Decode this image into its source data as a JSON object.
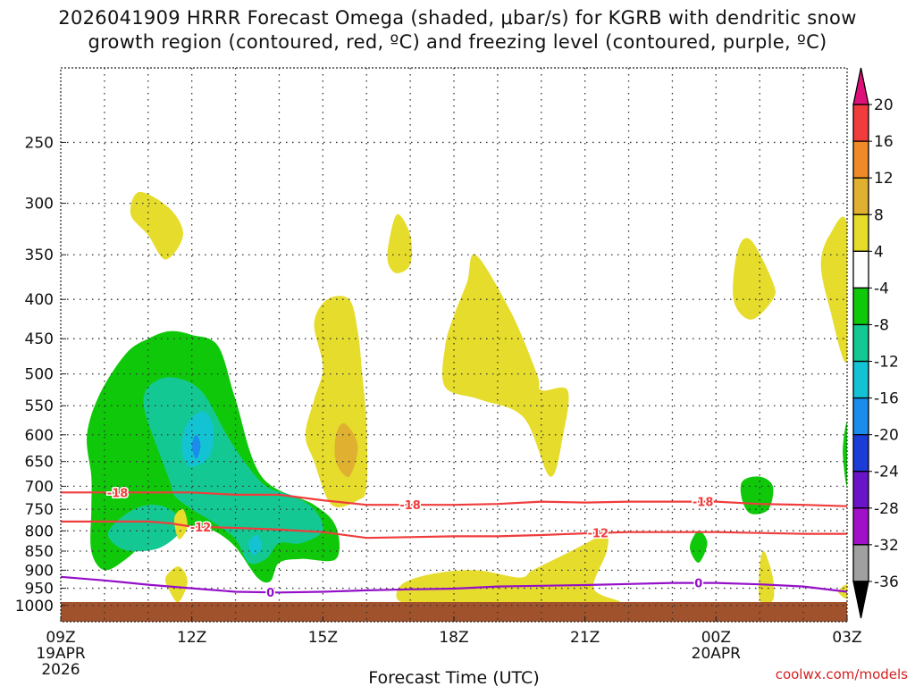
{
  "chart_data": {
    "type": "time-height cross-section (filled contour)",
    "title_line1": "2026041909 HRRR Forecast Omega (shaded, μbar/s) for KGRB with dendritic snow",
    "title_line2": "growth region (contoured, red, ºC) and freezing level (contoured, purple, ºC)",
    "xlabel": "Forecast Time (UTC)",
    "ylabel": "",
    "credit": "coolwx.com/models",
    "x_start_hours_since_09Z_19APR": 0,
    "x_end_hours_since_09Z_19APR": 18,
    "x_ticks": [
      {
        "hour": 0,
        "label": "09Z",
        "sub1": "19APR",
        "sub2": "2026"
      },
      {
        "hour": 3,
        "label": "12Z",
        "sub1": "",
        "sub2": ""
      },
      {
        "hour": 6,
        "label": "15Z",
        "sub1": "",
        "sub2": ""
      },
      {
        "hour": 9,
        "label": "18Z",
        "sub1": "",
        "sub2": ""
      },
      {
        "hour": 12,
        "label": "21Z",
        "sub1": "",
        "sub2": ""
      },
      {
        "hour": 15,
        "label": "00Z",
        "sub1": "20APR",
        "sub2": ""
      },
      {
        "hour": 18,
        "label": "03Z",
        "sub1": "",
        "sub2": ""
      }
    ],
    "pressure_axis_hPa": {
      "top": 200,
      "bottom": 1050,
      "scale": "log"
    },
    "y_ticks": [
      "250",
      "300",
      "350",
      "400",
      "450",
      "500",
      "550",
      "600",
      "650",
      "700",
      "750",
      "800",
      "850",
      "900",
      "950",
      "1000"
    ],
    "ground_hPa": 990,
    "colorbar": {
      "label_values": [
        "20",
        "16",
        "12",
        "8",
        "4",
        "-4",
        "-8",
        "-12",
        "-16",
        "-20",
        "-24",
        "-28",
        "-32",
        "-36"
      ],
      "colors": [
        "#e0107a",
        "#f03c3c",
        "#ef8a28",
        "#e0b030",
        "#e6dc2c",
        "#ffffff",
        "#10c80a",
        "#14c893",
        "#13c3d3",
        "#1a8cec",
        "#1c3cd8",
        "#6a14c8",
        "#a010c8",
        "#a0a0a0",
        "#000000"
      ]
    },
    "omega_regions": [
      {
        "color": "#10c80a",
        "value_range": "-8 to -4",
        "points": [
          [
            0.6,
            600
          ],
          [
            0.9,
            530
          ],
          [
            1.5,
            470
          ],
          [
            2.0,
            450
          ],
          [
            2.5,
            440
          ],
          [
            3.0,
            445
          ],
          [
            3.6,
            460
          ],
          [
            4.0,
            540
          ],
          [
            4.6,
            680
          ],
          [
            5.8,
            740
          ],
          [
            6.3,
            790
          ],
          [
            6.3,
            870
          ],
          [
            5.5,
            870
          ],
          [
            5.0,
            880
          ],
          [
            4.8,
            930
          ],
          [
            4.5,
            920
          ],
          [
            4.0,
            840
          ],
          [
            3.5,
            800
          ],
          [
            3.0,
            790
          ],
          [
            2.5,
            790
          ],
          [
            2.0,
            820
          ],
          [
            1.5,
            870
          ],
          [
            1.0,
            900
          ],
          [
            0.7,
            850
          ],
          [
            0.7,
            750
          ],
          [
            0.7,
            680
          ]
        ]
      },
      {
        "color": "#14c893",
        "value_range": "-12 to -8",
        "points": [
          [
            1.9,
            550
          ],
          [
            2.0,
            520
          ],
          [
            2.5,
            505
          ],
          [
            3.2,
            525
          ],
          [
            3.8,
            600
          ],
          [
            4.2,
            650
          ],
          [
            4.7,
            700
          ],
          [
            5.3,
            720
          ],
          [
            5.8,
            750
          ],
          [
            6.0,
            800
          ],
          [
            5.5,
            830
          ],
          [
            5.0,
            830
          ],
          [
            4.7,
            870
          ],
          [
            4.3,
            880
          ],
          [
            4.0,
            820
          ],
          [
            3.5,
            780
          ],
          [
            3.0,
            750
          ],
          [
            2.6,
            720
          ],
          [
            2.5,
            690
          ],
          [
            2.1,
            600
          ]
        ]
      },
      {
        "color": "#14c893",
        "value_range": "-12 to -8",
        "points": [
          [
            1.1,
            800
          ],
          [
            1.5,
            760
          ],
          [
            2.0,
            740
          ],
          [
            2.5,
            750
          ],
          [
            2.8,
            790
          ],
          [
            2.3,
            840
          ],
          [
            1.6,
            850
          ],
          [
            1.2,
            830
          ]
        ]
      },
      {
        "color": "#13c3d3",
        "value_range": "-16 to -12",
        "points": [
          [
            2.8,
            600
          ],
          [
            3.0,
            570
          ],
          [
            3.3,
            560
          ],
          [
            3.5,
            590
          ],
          [
            3.4,
            640
          ],
          [
            3.0,
            660
          ],
          [
            2.8,
            640
          ]
        ]
      },
      {
        "color": "#1a8cec",
        "value_range": "-20 to -16",
        "points": [
          [
            3.0,
            620
          ],
          [
            3.1,
            600
          ],
          [
            3.2,
            620
          ],
          [
            3.1,
            645
          ]
        ]
      },
      {
        "color": "#13c3d3",
        "value_range": "-16 to -12",
        "points": [
          [
            4.3,
            830
          ],
          [
            4.5,
            810
          ],
          [
            4.6,
            840
          ],
          [
            4.4,
            860
          ]
        ]
      },
      {
        "color": "#10c80a",
        "value_range": "-8 to -4",
        "points": [
          [
            15.6,
            690
          ],
          [
            16.0,
            680
          ],
          [
            16.3,
            700
          ],
          [
            16.2,
            750
          ],
          [
            15.8,
            760
          ],
          [
            15.6,
            730
          ]
        ]
      },
      {
        "color": "#10c80a",
        "value_range": "-8 to -4",
        "points": [
          [
            14.4,
            840
          ],
          [
            14.6,
            800
          ],
          [
            14.8,
            830
          ],
          [
            14.6,
            880
          ]
        ]
      },
      {
        "color": "#10c80a",
        "value_range": "-8 to -4",
        "points": [
          [
            18.0,
            580
          ],
          [
            17.9,
            630
          ],
          [
            18.0,
            700
          ]
        ]
      },
      {
        "color": "#e6dc2c",
        "value_range": "4 to 8",
        "points": [
          [
            1.6,
            310
          ],
          [
            1.8,
            290
          ],
          [
            2.5,
            305
          ],
          [
            2.8,
            330
          ],
          [
            2.4,
            355
          ],
          [
            2.0,
            330
          ]
        ]
      },
      {
        "color": "#e6dc2c",
        "value_range": "4 to 8",
        "points": [
          [
            9.3,
            380
          ],
          [
            9.5,
            350
          ],
          [
            10.3,
            415
          ],
          [
            10.9,
            500
          ],
          [
            11.0,
            525
          ],
          [
            11.6,
            525
          ],
          [
            11.5,
            600
          ],
          [
            11.2,
            680
          ],
          [
            10.6,
            570
          ],
          [
            9.6,
            540
          ],
          [
            8.8,
            520
          ],
          [
            8.8,
            460
          ],
          [
            9.0,
            420
          ]
        ]
      },
      {
        "color": "#e6dc2c",
        "value_range": "4 to 8",
        "points": [
          [
            7.5,
            340
          ],
          [
            7.7,
            310
          ],
          [
            8.0,
            330
          ],
          [
            8.0,
            360
          ],
          [
            7.7,
            370
          ],
          [
            7.5,
            360
          ]
        ]
      },
      {
        "color": "#e6dc2c",
        "value_range": "4 to 8",
        "points": [
          [
            5.8,
            430
          ],
          [
            6.1,
            400
          ],
          [
            6.6,
            400
          ],
          [
            6.8,
            440
          ],
          [
            6.9,
            500
          ],
          [
            7.0,
            580
          ],
          [
            7.0,
            700
          ],
          [
            6.8,
            730
          ],
          [
            6.2,
            740
          ],
          [
            5.8,
            650
          ],
          [
            5.6,
            600
          ],
          [
            5.8,
            540
          ],
          [
            6.0,
            490
          ]
        ]
      },
      {
        "color": "#e0b030",
        "value_range": "8 to 12",
        "points": [
          [
            6.3,
            600
          ],
          [
            6.5,
            580
          ],
          [
            6.8,
            620
          ],
          [
            6.6,
            680
          ],
          [
            6.3,
            650
          ]
        ]
      },
      {
        "color": "#e6dc2c",
        "value_range": "4 to 8",
        "points": [
          [
            2.6,
            770
          ],
          [
            2.8,
            750
          ],
          [
            2.9,
            790
          ],
          [
            2.7,
            820
          ]
        ]
      },
      {
        "color": "#e6dc2c",
        "value_range": "4 to 8",
        "points": [
          [
            2.4,
            920
          ],
          [
            2.7,
            890
          ],
          [
            2.9,
            930
          ],
          [
            2.7,
            990
          ],
          [
            2.5,
            960
          ]
        ]
      },
      {
        "color": "#e6dc2c",
        "value_range": "4 to 8",
        "points": [
          [
            7.8,
            940
          ],
          [
            8.5,
            910
          ],
          [
            9.5,
            900
          ],
          [
            10.5,
            920
          ],
          [
            10.8,
            900
          ],
          [
            11.5,
            860
          ],
          [
            12.2,
            820
          ],
          [
            12.5,
            800
          ],
          [
            12.5,
            850
          ],
          [
            12.2,
            950
          ],
          [
            12.8,
            990
          ],
          [
            12.0,
            990
          ],
          [
            11.0,
            990
          ],
          [
            10.0,
            990
          ],
          [
            9.0,
            990
          ],
          [
            7.8,
            990
          ]
        ]
      },
      {
        "color": "#e6dc2c",
        "value_range": "4 to 8",
        "points": [
          [
            15.5,
            345
          ],
          [
            15.8,
            335
          ],
          [
            16.3,
            380
          ],
          [
            16.3,
            400
          ],
          [
            15.8,
            425
          ],
          [
            15.4,
            400
          ]
        ]
      },
      {
        "color": "#e6dc2c",
        "value_range": "4 to 8",
        "points": [
          [
            17.6,
            330
          ],
          [
            18.0,
            320
          ],
          [
            18.0,
            480
          ],
          [
            17.6,
            410
          ],
          [
            17.4,
            360
          ]
        ]
      },
      {
        "color": "#e6dc2c",
        "value_range": "4 to 8",
        "points": [
          [
            16.0,
            890
          ],
          [
            16.1,
            850
          ],
          [
            16.3,
            920
          ],
          [
            16.3,
            985
          ],
          [
            16.0,
            985
          ]
        ]
      },
      {
        "color": "#e6dc2c",
        "value_range": "4 to 8",
        "points": [
          [
            17.8,
            960
          ],
          [
            18.0,
            940
          ],
          [
            18.0,
            980
          ]
        ]
      }
    ],
    "contours": [
      {
        "name": "dgz -18",
        "color": "#f03c3c",
        "label": "-18",
        "label_at_hours": [
          1.3,
          8.0,
          14.7
        ],
        "points": [
          [
            0,
            713
          ],
          [
            1.0,
            713
          ],
          [
            2.0,
            713
          ],
          [
            3.0,
            713
          ],
          [
            4.0,
            718
          ],
          [
            5.0,
            718
          ],
          [
            6.0,
            730
          ],
          [
            7.0,
            740
          ],
          [
            8.0,
            740
          ],
          [
            9.0,
            740
          ],
          [
            10.0,
            738
          ],
          [
            11.0,
            733
          ],
          [
            12.0,
            735
          ],
          [
            13.0,
            733
          ],
          [
            14.0,
            733
          ],
          [
            15.0,
            733
          ],
          [
            16.0,
            738
          ],
          [
            17.0,
            740
          ],
          [
            18.0,
            743
          ]
        ]
      },
      {
        "name": "dgz -12",
        "color": "#f03c3c",
        "label": "-12",
        "label_at_hours": [
          3.2,
          12.3
        ],
        "points": [
          [
            0,
            778
          ],
          [
            1.0,
            778
          ],
          [
            2.0,
            778
          ],
          [
            2.5,
            782
          ],
          [
            3.0,
            790
          ],
          [
            4.0,
            793
          ],
          [
            5.0,
            797
          ],
          [
            6.0,
            803
          ],
          [
            7.0,
            817
          ],
          [
            8.0,
            815
          ],
          [
            9.0,
            813
          ],
          [
            10.0,
            813
          ],
          [
            11.0,
            810
          ],
          [
            12.0,
            806
          ],
          [
            13.0,
            803
          ],
          [
            14.0,
            803
          ],
          [
            15.0,
            803
          ],
          [
            16.0,
            805
          ],
          [
            17.0,
            807
          ],
          [
            18.0,
            807
          ]
        ]
      },
      {
        "name": "freezing level 0",
        "color": "#9410c8",
        "label": "0",
        "label_at_hours": [
          4.8,
          14.6
        ],
        "points": [
          [
            0,
            918
          ],
          [
            1.0,
            928
          ],
          [
            2.0,
            940
          ],
          [
            3.0,
            950
          ],
          [
            4.0,
            960
          ],
          [
            5.0,
            962
          ],
          [
            6.0,
            960
          ],
          [
            7.0,
            956
          ],
          [
            8.0,
            953
          ],
          [
            9.0,
            951
          ],
          [
            10.0,
            945
          ],
          [
            11.0,
            943
          ],
          [
            12.0,
            941
          ],
          [
            13.0,
            938
          ],
          [
            14.0,
            935
          ],
          [
            15.0,
            935
          ],
          [
            16.0,
            939
          ],
          [
            17.0,
            945
          ],
          [
            18.0,
            960
          ]
        ]
      }
    ]
  }
}
